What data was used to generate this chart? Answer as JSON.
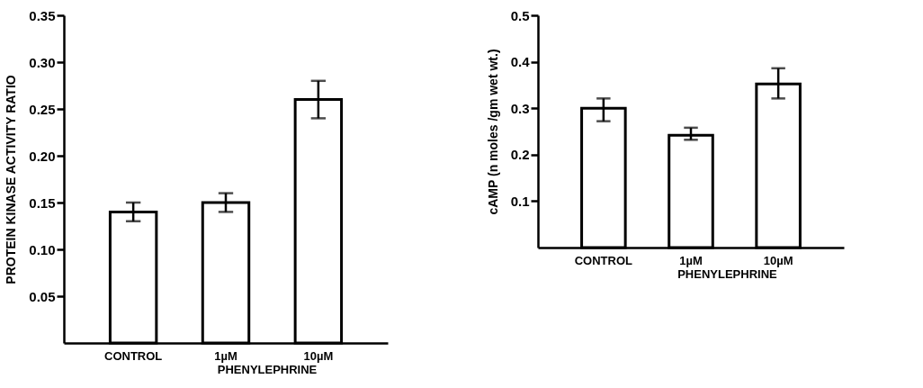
{
  "chart_data": [
    {
      "type": "bar",
      "categories": [
        "CONTROL",
        "1µM",
        "10µM"
      ],
      "values": [
        0.14,
        0.15,
        0.26
      ],
      "errors": [
        [
          0.13,
          0.15
        ],
        [
          0.14,
          0.16
        ],
        [
          0.24,
          0.28
        ]
      ],
      "color": "#ffffff",
      "xlabel": "PHENYLEPHRINE",
      "ylabel": "PROTEIN KINASE ACTIVITY RATIO",
      "ylim": [
        0,
        0.35
      ],
      "yticks": [
        0.05,
        {
          "value": 0.1,
          "label": "0.10"
        },
        0.15,
        {
          "value": 0.2,
          "label": "0.20"
        },
        0.25,
        {
          "value": 0.3,
          "label": "0.30"
        },
        0.35
      ],
      "grid": false
    },
    {
      "type": "bar",
      "categories": [
        "CONTROL",
        "1µM",
        "10µM"
      ],
      "values": [
        0.3,
        0.242,
        0.352
      ],
      "errors": [
        [
          0.272,
          0.321
        ],
        [
          0.232,
          0.258
        ],
        [
          0.321,
          0.386
        ]
      ],
      "color": "#ffffff",
      "xlabel": "PHENYLEPHRINE",
      "ylabel": "cAMP (n moles /gm wet wt.)",
      "ylim": [
        0,
        0.5
      ],
      "yticks": [
        0.1,
        0.2,
        0.3,
        0.4,
        0.5
      ],
      "grid": false
    }
  ]
}
